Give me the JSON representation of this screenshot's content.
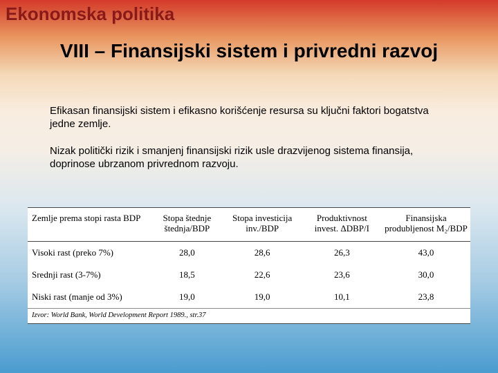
{
  "page": {
    "title": "Ekonomska politika",
    "section_title": "VIII – Finansijski sistem i privredni razvoj"
  },
  "paragraphs": {
    "p1": "Efikasan finansijski sistem i efikasno korišćenje resursa su ključni faktori bogatstva jedne zemlje.",
    "p2": "Nizak politički rizik i smanjenj finansijski rizik usle drazvijenog sistema finansija, doprinose ubrzanom privrednom razvoju."
  },
  "table": {
    "headers": {
      "c0": "Zemlje prema stopi rasta BDP",
      "c1": "Stopa štednje štednja/BDP",
      "c2": "Stopa investicija inv./BDP",
      "c3": "Produktivnost invest. ΔDBP/I",
      "c4": "Finansijska produbljenost M₂/BDP"
    },
    "rows": [
      {
        "c0": "Visoki rast (preko 7%)",
        "c1": "28,0",
        "c2": "28,6",
        "c3": "26,3",
        "c4": "43,0"
      },
      {
        "c0": "Srednji rast (3-7%)",
        "c1": "18,5",
        "c2": "22,6",
        "c3": "23,6",
        "c4": "30,0"
      },
      {
        "c0": "Niski rast (manje od 3%)",
        "c1": "19,0",
        "c2": "19,0",
        "c3": "10,1",
        "c4": "23,8"
      }
    ],
    "source": "Izvor: World Bank, World Development Report 1989., str.37"
  },
  "style": {
    "title_color": "#8a1a1a",
    "gradient_stops": [
      "#d43a2a",
      "#e8965f",
      "#f4d9b8",
      "#f5eee5",
      "#a8cce4",
      "#4a9bcf"
    ]
  }
}
